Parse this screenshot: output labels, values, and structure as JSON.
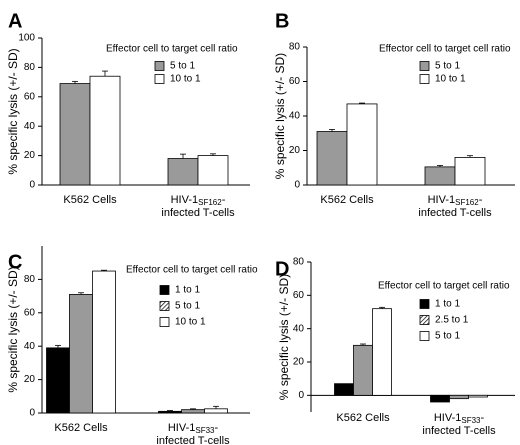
{
  "chart_data": [
    {
      "type": "bar",
      "panel_label": "A",
      "ylabel": "% specific lysis (+/- SD)",
      "ylim": [
        0,
        100
      ],
      "yticks": [
        "0",
        "20",
        "40",
        "60",
        "80",
        "100"
      ],
      "legend_title": "Effector cell to target cell ratio",
      "legend_placement": "top-right",
      "categories": [
        {
          "lines": [
            "K562 Cells"
          ]
        },
        {
          "lines": [
            "HIV-1|SF162|-",
            "infected T-cells"
          ]
        }
      ],
      "series": [
        {
          "name": "5 to 1",
          "color": "#9a9a9a",
          "values": [
            69,
            18
          ],
          "errors": [
            1.5,
            3
          ]
        },
        {
          "name": "10 to 1",
          "color": "#ffffff",
          "values": [
            74,
            20
          ],
          "errors": [
            3.5,
            1.2
          ]
        }
      ]
    },
    {
      "type": "bar",
      "panel_label": "B",
      "ylabel": "% specific lysis (+/- SD)",
      "ylim": [
        0,
        80
      ],
      "yticks": [
        "0",
        "20",
        "40",
        "60",
        "80"
      ],
      "legend_title": "Effector cell to target cell ratio",
      "legend_placement": "top-right",
      "categories": [
        {
          "lines": [
            "K562 Cells"
          ]
        },
        {
          "lines": [
            "HIV-1|SF162|-",
            "infected T-cells"
          ]
        }
      ],
      "series": [
        {
          "name": "5 to 1",
          "color": "#9a9a9a",
          "values": [
            31,
            10.5
          ],
          "errors": [
            1.2,
            0.8
          ]
        },
        {
          "name": "10 to 1",
          "color": "#ffffff",
          "values": [
            47,
            16
          ],
          "errors": [
            0.5,
            1
          ]
        }
      ]
    },
    {
      "type": "bar",
      "panel_label": "C",
      "ylabel": "% specific lysis (+/- SD)",
      "ylim": [
        0,
        100
      ],
      "yticks": [
        "0",
        "20",
        "40",
        "60",
        "80"
      ],
      "legend_title": "Effector cell to target cell ratio",
      "legend_placement": "top-right",
      "categories": [
        {
          "lines": [
            "K562 Cells"
          ]
        },
        {
          "lines": [
            "HIV-1|SF33|-",
            "infected T-cells"
          ]
        }
      ],
      "series": [
        {
          "name": "1 to 1",
          "color": "#000000",
          "values": [
            39,
            1
          ],
          "errors": [
            1.5,
            0.5
          ]
        },
        {
          "name": "5 to 1",
          "color": "#9a9a9a",
          "values": [
            71,
            2
          ],
          "errors": [
            1,
            0.5
          ]
        },
        {
          "name": "10 to 1",
          "color": "#ffffff",
          "values": [
            85,
            2.5
          ],
          "errors": [
            0.5,
            1.5
          ]
        }
      ]
    },
    {
      "type": "bar",
      "panel_label": "D",
      "ylabel": "% specific lysis (+/- SD)",
      "ylim": [
        -10,
        80
      ],
      "yticks": [
        "0",
        "20",
        "40",
        "60",
        "80"
      ],
      "legend_title": "Effector cell to target cell ratio",
      "legend_placement": "top-right",
      "categories": [
        {
          "lines": [
            "K562 Cells"
          ]
        },
        {
          "lines": [
            "HIV-1|SF33|-",
            "infected T-cells"
          ]
        }
      ],
      "series": [
        {
          "name": "1 to 1",
          "color": "#000000",
          "values": [
            7,
            -4
          ],
          "errors": [
            0,
            0
          ]
        },
        {
          "name": "2.5 to 1",
          "color": "#9a9a9a",
          "values": [
            30,
            -2
          ],
          "errors": [
            0.8,
            0
          ]
        },
        {
          "name": "5 to 1",
          "color": "#ffffff",
          "values": [
            52,
            -1
          ],
          "errors": [
            0.8,
            0
          ]
        }
      ]
    }
  ]
}
